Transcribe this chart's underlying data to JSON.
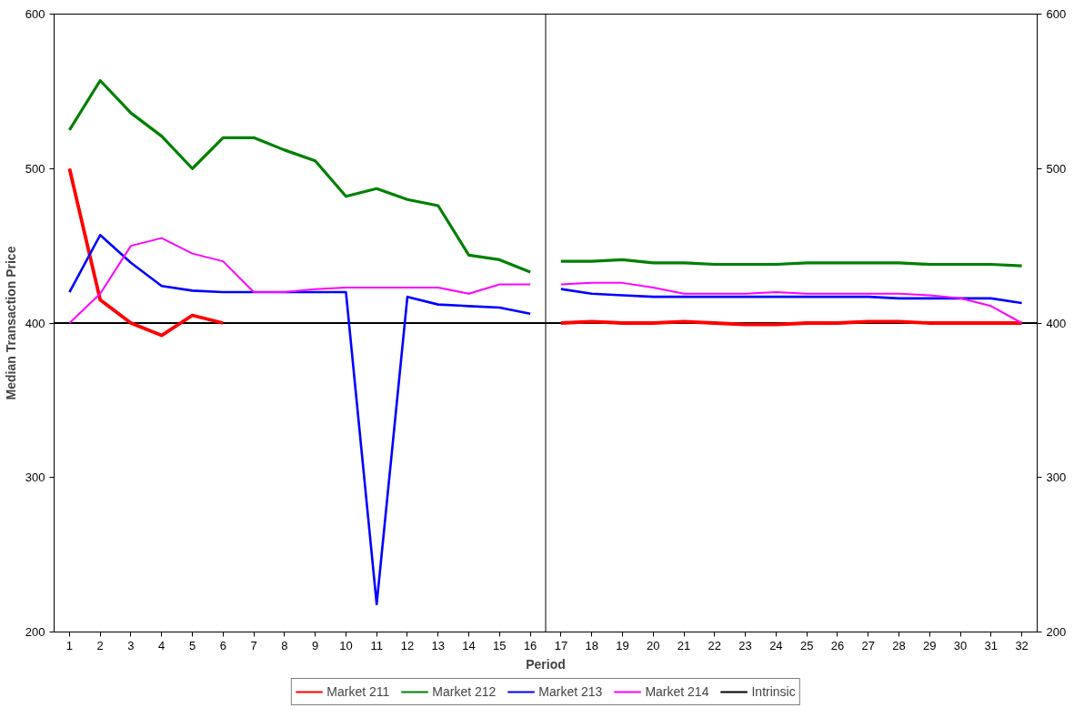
{
  "chart_data": {
    "type": "line",
    "xlabel": "Period",
    "ylabel": "Median Transaction Price",
    "x": [
      1,
      2,
      3,
      4,
      5,
      6,
      7,
      8,
      9,
      10,
      11,
      12,
      13,
      14,
      15,
      16,
      17,
      18,
      19,
      20,
      21,
      22,
      23,
      24,
      25,
      26,
      27,
      28,
      29,
      30,
      31,
      32
    ],
    "xlim": [
      0.5,
      32.5
    ],
    "xticks": [
      1,
      2,
      3,
      4,
      5,
      6,
      7,
      8,
      9,
      10,
      11,
      12,
      13,
      14,
      15,
      16,
      17,
      18,
      19,
      20,
      21,
      22,
      23,
      24,
      25,
      26,
      27,
      28,
      29,
      30,
      31,
      32
    ],
    "ylim": [
      200,
      600
    ],
    "yticks": [
      200,
      300,
      400,
      500,
      600
    ],
    "y2lim": [
      200,
      600
    ],
    "y2ticks": [
      200,
      300,
      400,
      500,
      600
    ],
    "grid": false,
    "legend": "bottom",
    "line_style": "solid",
    "marker": "none",
    "series": [
      {
        "name": "Market 211",
        "color": "#ff0000",
        "values": [
          500,
          415,
          400,
          392,
          405,
          400,
          null,
          null,
          null,
          null,
          null,
          null,
          null,
          null,
          null,
          null,
          400,
          401,
          400,
          400,
          401,
          400,
          399,
          399,
          400,
          400,
          401,
          401,
          400,
          400,
          400,
          400
        ]
      },
      {
        "name": "Market 212",
        "color": "#008000",
        "values": [
          525,
          557,
          536,
          521,
          500,
          520,
          520,
          512,
          505,
          482,
          487,
          480,
          476,
          444,
          441,
          433,
          440,
          440,
          441,
          439,
          439,
          438,
          438,
          438,
          439,
          439,
          439,
          439,
          438,
          438,
          438,
          437
        ]
      },
      {
        "name": "Market 213",
        "color": "#0000ff",
        "values": [
          420,
          457,
          439,
          424,
          421,
          420,
          420,
          420,
          420,
          420,
          218,
          417,
          412,
          411,
          410,
          406,
          422,
          419,
          418,
          417,
          417,
          417,
          417,
          417,
          417,
          417,
          417,
          416,
          416,
          416,
          416,
          413
        ]
      },
      {
        "name": "Market 214",
        "color": "#ff00ff",
        "values": [
          400,
          419,
          450,
          455,
          445,
          440,
          420,
          420,
          422,
          423,
          423,
          423,
          423,
          419,
          425,
          425,
          425,
          426,
          426,
          423,
          419,
          419,
          419,
          420,
          419,
          419,
          419,
          419,
          418,
          416,
          411,
          400
        ]
      }
    ],
    "ref_lines": [
      {
        "axis": "x",
        "value": 16.5,
        "label": null,
        "color": "#000000"
      },
      {
        "axis": "y",
        "value": 400,
        "label": "Intrinsic",
        "color": "#000000"
      }
    ]
  }
}
